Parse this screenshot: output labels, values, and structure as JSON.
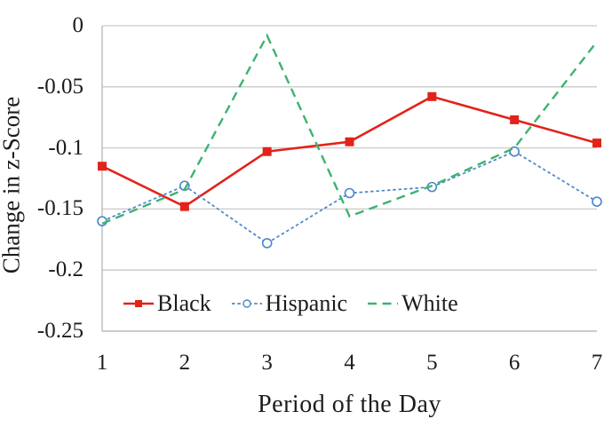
{
  "chart_data": {
    "type": "line",
    "title": "",
    "xlabel": "Period of the Day",
    "ylabel": "Change in z-Score",
    "x": [
      1,
      2,
      3,
      4,
      5,
      6,
      7
    ],
    "xtick_labels": [
      "1",
      "2",
      "3",
      "4",
      "5",
      "6",
      "7"
    ],
    "ytick_labels": [
      "0",
      "-0.05",
      "-0.1",
      "-0.15",
      "-0.2",
      "-0.25"
    ],
    "yticks": [
      0,
      -0.05,
      -0.1,
      -0.15,
      -0.2,
      -0.25
    ],
    "ylim": [
      -0.25,
      0
    ],
    "grid": "horizontal",
    "legend_position": "inside-bottom-left",
    "series": [
      {
        "name": "Black",
        "color": "#e2231a",
        "line_style": "solid",
        "marker": "square",
        "values": [
          -0.115,
          -0.148,
          -0.103,
          -0.095,
          -0.058,
          -0.077,
          -0.096
        ]
      },
      {
        "name": "Hispanic",
        "color": "#4a86c8",
        "line_style": "short-dash",
        "marker": "circle-open",
        "values": [
          -0.16,
          -0.131,
          -0.178,
          -0.137,
          -0.132,
          -0.103,
          -0.144
        ]
      },
      {
        "name": "White",
        "color": "#3cb371",
        "line_style": "long-dash",
        "marker": "none",
        "values": [
          -0.162,
          -0.134,
          -0.008,
          -0.156,
          -0.131,
          -0.1,
          -0.013
        ]
      }
    ]
  },
  "colors": {
    "background": "#ffffff",
    "gridline": "#c9c9c9",
    "axis": "#b5b5b5",
    "text": "#1c1c1c"
  }
}
